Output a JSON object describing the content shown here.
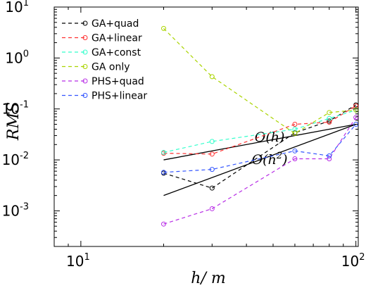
{
  "chart_data": {
    "type": "line",
    "xlabel": "h/ m",
    "ylabel": "RMS",
    "xscale": "log",
    "yscale": "log",
    "xlim": [
      8,
      102
    ],
    "ylim": [
      0.0002,
      10
    ],
    "x_ticks": [
      {
        "base": "10",
        "exp": "1",
        "value": 10
      },
      {
        "base": "10",
        "exp": "2",
        "value": 100
      }
    ],
    "y_ticks": [
      {
        "base": "10",
        "exp": "1",
        "value": 10
      },
      {
        "base": "10",
        "exp": "0",
        "value": 1
      },
      {
        "base": "10",
        "exp": "-1",
        "value": 0.1
      },
      {
        "base": "10",
        "exp": "-2",
        "value": 0.01
      },
      {
        "base": "10",
        "exp": "-3",
        "value": 0.001
      }
    ],
    "legend_position": "top-left",
    "grid": false,
    "series": [
      {
        "name": "GA+quad",
        "color": "#000000",
        "x": [
          20,
          30,
          60,
          80,
          100
        ],
        "y": [
          0.0055,
          0.0028,
          0.034,
          0.058,
          0.12
        ]
      },
      {
        "name": "GA+linear",
        "color": "#ff3030",
        "x": [
          20,
          30,
          60,
          80,
          100
        ],
        "y": [
          0.0135,
          0.013,
          0.05,
          0.055,
          0.115
        ]
      },
      {
        "name": "GA+const",
        "color": "#33ffcc",
        "x": [
          20,
          30,
          60,
          80,
          100
        ],
        "y": [
          0.014,
          0.023,
          0.04,
          0.065,
          0.095
        ]
      },
      {
        "name": "GA only",
        "color": "#aad400",
        "x": [
          20,
          30,
          60,
          80,
          100
        ],
        "y": [
          3.8,
          0.43,
          0.033,
          0.085,
          0.095
        ]
      },
      {
        "name": "PHS+quad",
        "color": "#b82ee6",
        "x": [
          20,
          30,
          60,
          80,
          100
        ],
        "y": [
          0.00055,
          0.0011,
          0.0105,
          0.0105,
          0.068
        ]
      },
      {
        "name": "PHS+linear",
        "color": "#3355ff",
        "x": [
          20,
          30,
          60,
          80,
          100
        ],
        "y": [
          0.0057,
          0.0065,
          0.015,
          0.012,
          0.05
        ]
      }
    ],
    "reference_lines": [
      {
        "label": "O(h)",
        "label_main": "O(h)",
        "label_sup": "",
        "x": [
          20,
          100
        ],
        "y": [
          0.01,
          0.05
        ]
      },
      {
        "label": "O(h^2)",
        "label_main": "O(h",
        "label_sup": "2",
        "label_close": ")",
        "x": [
          20,
          100
        ],
        "y": [
          0.002,
          0.05
        ]
      }
    ]
  }
}
